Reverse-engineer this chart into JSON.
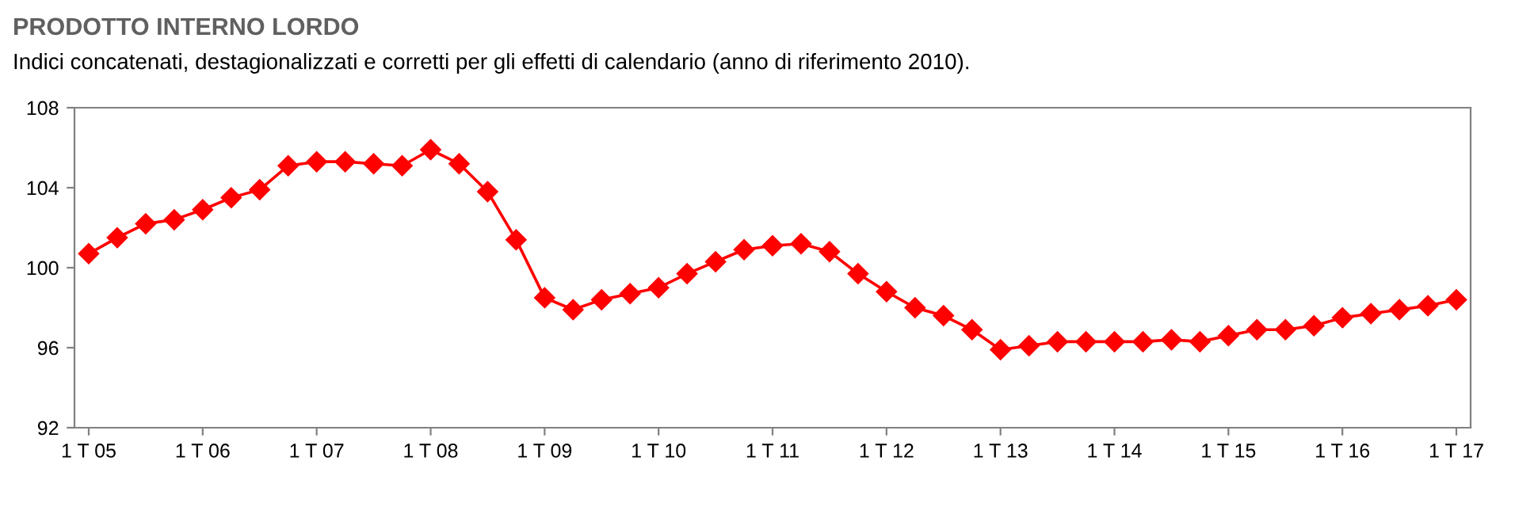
{
  "chart_data": {
    "type": "line",
    "title": "PRODOTTO INTERNO LORDO",
    "subtitle": "Indici concatenati, destagionalizzati e corretti per gli effetti di calendario (anno di riferimento 2010).",
    "categories": [
      "1 T 05",
      null,
      null,
      null,
      "1 T 06",
      null,
      null,
      null,
      "1 T 07",
      null,
      null,
      null,
      "1 T 08",
      null,
      null,
      null,
      "1 T 09",
      null,
      null,
      null,
      "1 T 10",
      null,
      null,
      null,
      "1 T 11",
      null,
      null,
      null,
      "1 T 12",
      null,
      null,
      null,
      "1 T 13",
      null,
      null,
      null,
      "1 T 14",
      null,
      null,
      null,
      "1 T 15",
      null,
      null,
      null,
      "1 T 16",
      null,
      null,
      null,
      "1 T 17"
    ],
    "series": [
      {
        "color": "#ff0000",
        "values": [
          100.7,
          101.5,
          102.2,
          102.4,
          102.9,
          103.5,
          103.9,
          105.1,
          105.3,
          105.3,
          105.2,
          105.1,
          105.9,
          105.2,
          103.8,
          101.4,
          98.5,
          97.9,
          98.4,
          98.7,
          99.0,
          99.7,
          100.3,
          100.9,
          101.1,
          101.2,
          100.8,
          99.7,
          98.8,
          98.0,
          97.6,
          96.9,
          95.9,
          96.1,
          96.3,
          96.3,
          96.3,
          96.3,
          96.4,
          96.3,
          96.6,
          96.9,
          96.9,
          97.1,
          97.5,
          97.7,
          97.9,
          98.1,
          98.4
        ]
      }
    ],
    "ylim": [
      92,
      108
    ],
    "yticks": [
      92,
      96,
      100,
      104,
      108
    ],
    "grid": false,
    "legend": false,
    "marker": "diamond",
    "line_style": "solid"
  }
}
